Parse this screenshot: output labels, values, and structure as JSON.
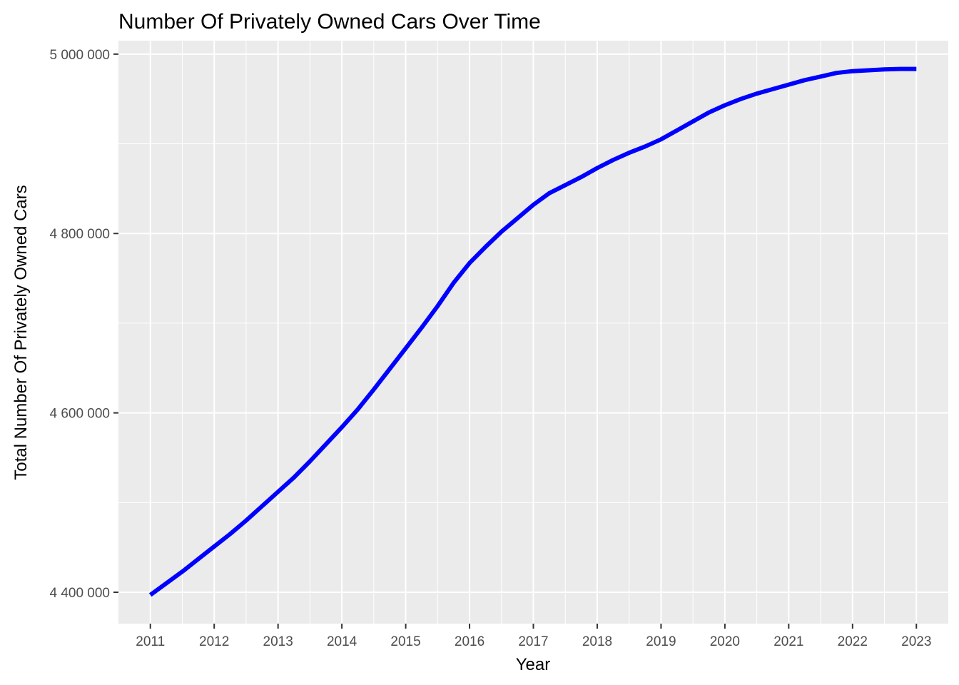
{
  "chart_data": {
    "type": "line",
    "title": "Number Of Privately Owned Cars Over Time",
    "xlabel": "Year",
    "ylabel": "Total Number Of Privately Owned Cars",
    "xlim": [
      2010.5,
      2023.5
    ],
    "ylim": [
      4365000,
      5015000
    ],
    "x_ticks": [
      2011,
      2012,
      2013,
      2014,
      2015,
      2016,
      2017,
      2018,
      2019,
      2020,
      2021,
      2022,
      2023
    ],
    "x_tick_labels": [
      "2011",
      "2012",
      "2013",
      "2014",
      "2015",
      "2016",
      "2017",
      "2018",
      "2019",
      "2020",
      "2021",
      "2022",
      "2023"
    ],
    "y_ticks": [
      4400000,
      4600000,
      4800000,
      5000000
    ],
    "y_tick_labels": [
      "4 400 000",
      "4 600 000",
      "4 800 000",
      "5 000 000"
    ],
    "grid": true,
    "background": "#ebebeb",
    "line_color": "#0000ff",
    "series": [
      {
        "x": [
          2011.0,
          2011.25,
          2011.5,
          2011.75,
          2012.0,
          2012.25,
          2012.5,
          2012.75,
          2013.0,
          2013.25,
          2013.5,
          2013.75,
          2014.0,
          2014.25,
          2014.5,
          2014.75,
          2015.0,
          2015.25,
          2015.5,
          2015.75,
          2016.0,
          2016.25,
          2016.5,
          2016.75,
          2017.0,
          2017.25,
          2017.5,
          2017.75,
          2018.0,
          2018.25,
          2018.5,
          2018.75,
          2019.0,
          2019.25,
          2019.5,
          2019.75,
          2020.0,
          2020.25,
          2020.5,
          2020.75,
          2021.0,
          2021.25,
          2021.5,
          2021.75,
          2022.0,
          2022.25,
          2022.5,
          2022.75,
          2023.0
        ],
        "y": [
          4397000,
          4410000,
          4423000,
          4437000,
          4451000,
          4465000,
          4480000,
          4496000,
          4512000,
          4528000,
          4546000,
          4565000,
          4584000,
          4604000,
          4626000,
          4649000,
          4672000,
          4695000,
          4719000,
          4745000,
          4767000,
          4785000,
          4802000,
          4817000,
          4832000,
          4845000,
          4854000,
          4863000,
          4873000,
          4882000,
          4890000,
          4897000,
          4905000,
          4915000,
          4925000,
          4935000,
          4943000,
          4950000,
          4956000,
          4961000,
          4966000,
          4971000,
          4975000,
          4979000,
          4981000,
          4982000,
          4983000,
          4983500,
          4983500
        ]
      }
    ]
  }
}
